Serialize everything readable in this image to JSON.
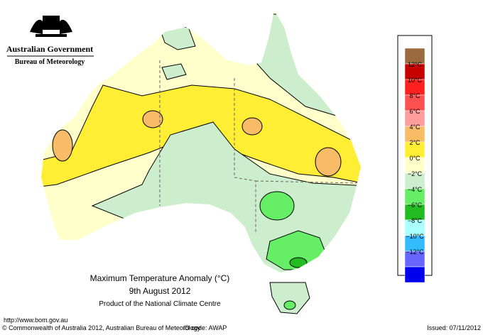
{
  "header": {
    "agency": "Australian Government",
    "bureau": "Bureau of Meteorology"
  },
  "map": {
    "title": "Maximum Temperature Anomaly (°C)",
    "date": "9th August 2012",
    "product": "Product of the National Climate Centre"
  },
  "legend": [
    {
      "label": "12°C"
    },
    {
      "label": "10°C"
    },
    {
      "label": "8°C"
    },
    {
      "label": "6°C"
    },
    {
      "label": "4°C"
    },
    {
      "label": "2°C"
    },
    {
      "label": "0°C"
    },
    {
      "label": "−2°C"
    },
    {
      "label": "−4°C"
    },
    {
      "label": "−6°C"
    },
    {
      "label": "−8°C"
    },
    {
      "label": "−10°C"
    },
    {
      "label": "−12°C"
    }
  ],
  "legend_colors": [
    "#9b6a3e",
    "#c80000",
    "#ff2020",
    "#ff5050",
    "#ff9c9c",
    "#f8bb66",
    "#ffee33",
    "#ffffcc",
    "#cceecc",
    "#66ee66",
    "#22bb22",
    "#aaffff",
    "#33bbff",
    "#6666ff",
    "#0000ee"
  ],
  "footer": {
    "url": "http://www.bom.gov.au",
    "copyright": "© Commonwealth of Australia 2012, Australian Bureau of Meteorology",
    "id_code": "ID code: AWAP",
    "issued": "Issued: 07/11/2012"
  }
}
